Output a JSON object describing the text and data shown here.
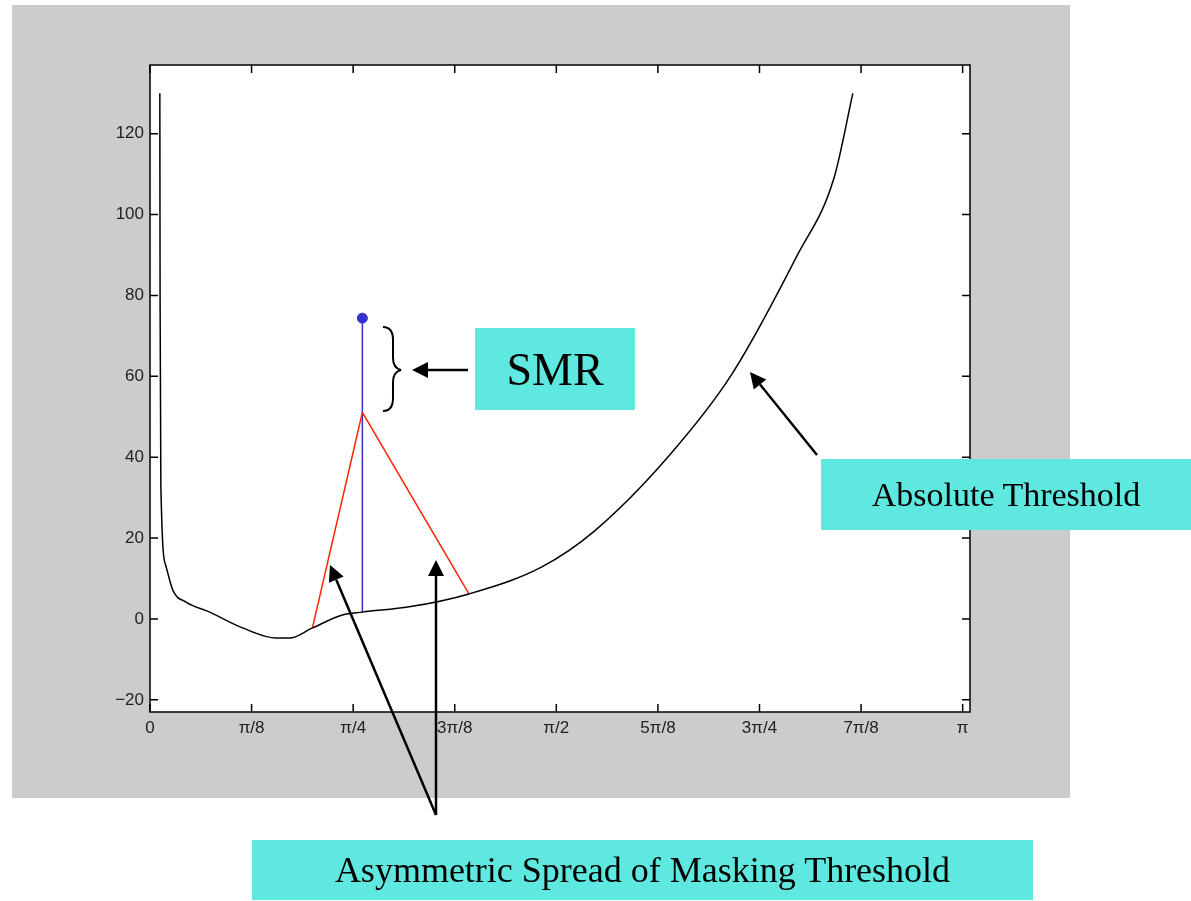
{
  "chart_data": {
    "type": "line",
    "xlim": [
      0,
      3.17
    ],
    "ylim": [
      -23,
      137
    ],
    "xticks": [
      0,
      {
        "value": 0.3927,
        "label": "π/8"
      },
      {
        "value": 0.7854,
        "label": "π/4"
      },
      {
        "value": 1.1781,
        "label": "3π/8"
      },
      {
        "value": 1.5708,
        "label": "π/2"
      },
      {
        "value": 1.9635,
        "label": "5π/8"
      },
      {
        "value": 2.3562,
        "label": "3π/4"
      },
      {
        "value": 2.7489,
        "label": "7π/8"
      },
      {
        "value": 3.1416,
        "label": "π"
      }
    ],
    "yticks": [
      {
        "value": -20,
        "label": "−20"
      },
      0,
      20,
      40,
      60,
      80,
      100,
      120
    ],
    "grid": false,
    "series": [
      {
        "color": "#000000",
        "x": [
          0.038,
          0.039,
          0.042,
          0.062,
          0.089,
          0.139,
          0.231,
          0.358,
          0.486,
          0.54,
          0.628,
          0.744,
          0.821,
          1.002,
          1.233,
          1.515,
          1.719,
          2.004,
          2.247,
          2.501,
          2.644,
          2.717
        ],
        "values": [
          130,
          79,
          33,
          13,
          7,
          4.2,
          1.7,
          -2.2,
          -4.7,
          -4.7,
          -2.2,
          1,
          1.7,
          3,
          6.2,
          12.9,
          21.8,
          40.2,
          60.3,
          89.8,
          109,
          130
        ]
      },
      {
        "color": "#ff2200",
        "x": [
          0.628,
          0.821,
          1.233
        ],
        "values": [
          -2.2,
          51.1,
          6.2
        ]
      },
      {
        "color": "#3333cc",
        "x": [
          0.821,
          0.821
        ],
        "values": [
          1.7,
          74.4
        ]
      },
      {
        "type": "scatter",
        "color": "#3333cc",
        "marker": "circle",
        "x": [
          0.821
        ],
        "values": [
          74.4
        ]
      }
    ],
    "annotations": [
      "SMR",
      "Absolute Threshold",
      "Asymmetric Spread of Masking Threshold"
    ]
  }
}
